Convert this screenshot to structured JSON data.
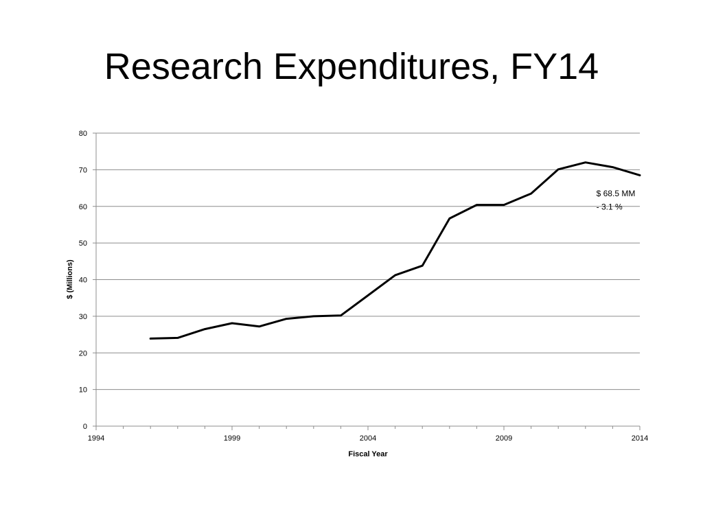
{
  "slide": {
    "title": "Research Expenditures, FY14"
  },
  "chart_data": {
    "type": "line",
    "xlabel": "Fiscal Year",
    "ylabel": "$ (Millions)",
    "xlim": [
      1994,
      2014
    ],
    "ylim": [
      0,
      80
    ],
    "xticks": [
      1994,
      1999,
      2004,
      2009,
      2014
    ],
    "yticks": [
      0,
      10,
      20,
      30,
      40,
      50,
      60,
      70,
      80
    ],
    "grid": "horizontal",
    "legend": "none",
    "series": [
      {
        "x": [
          1996,
          1997,
          1998,
          1999,
          2000,
          2001,
          2002,
          2003,
          2004,
          2005,
          2006,
          2007,
          2008,
          2009,
          2010,
          2011,
          2012,
          2013,
          2014
        ],
        "values": [
          23.9,
          24.1,
          26.5,
          28.1,
          27.2,
          29.3,
          30.0,
          30.2,
          35.7,
          41.2,
          43.8,
          56.7,
          60.4,
          60.4,
          63.5,
          70.1,
          72.0,
          70.7,
          68.5
        ],
        "color": "#000000"
      }
    ],
    "annotations": [
      {
        "text": "$ 68.5 MM",
        "x": 2012.4,
        "y": 62.8
      },
      {
        "text": "- 3.1 %",
        "x": 2012.4,
        "y": 59.1
      }
    ]
  }
}
